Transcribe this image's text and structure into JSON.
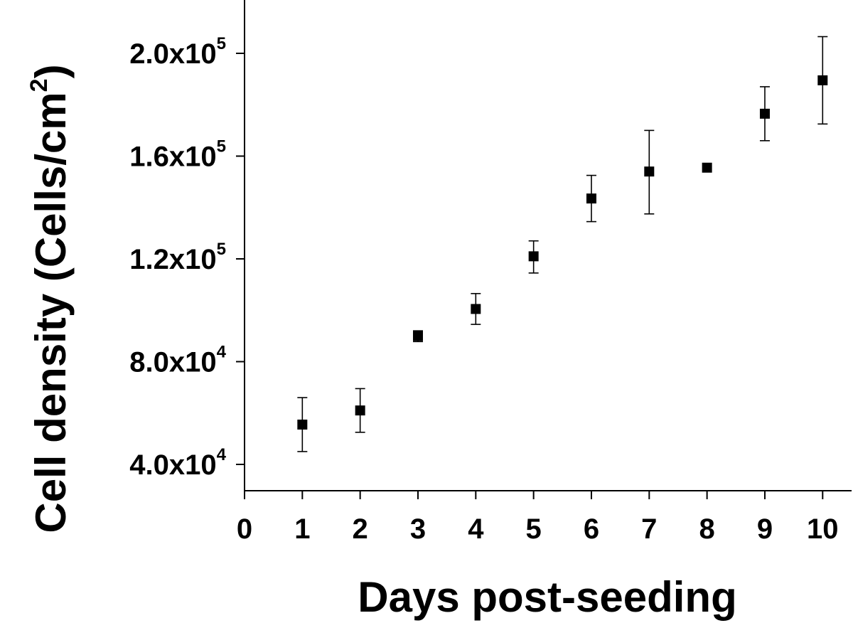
{
  "chart_data": {
    "type": "scatter",
    "xlabel": "Days post-seeding",
    "ylabel": {
      "text": "Cell density (Cells/cm",
      "superscript": "2",
      "suffix": ")"
    },
    "xlim": [
      0,
      10.5
    ],
    "ylim": [
      30000,
      220000
    ],
    "x_ticks": [
      {
        "value": 0,
        "label": "0"
      },
      {
        "value": 1,
        "label": "1"
      },
      {
        "value": 2,
        "label": "2"
      },
      {
        "value": 3,
        "label": "3"
      },
      {
        "value": 4,
        "label": "4"
      },
      {
        "value": 5,
        "label": "5"
      },
      {
        "value": 6,
        "label": "6"
      },
      {
        "value": 7,
        "label": "7"
      },
      {
        "value": 8,
        "label": "8"
      },
      {
        "value": 9,
        "label": "9"
      },
      {
        "value": 10,
        "label": "10"
      }
    ],
    "y_ticks": [
      {
        "value": 40000,
        "mantissa": "4.0x10",
        "exponent": "4"
      },
      {
        "value": 80000,
        "mantissa": "8.0x10",
        "exponent": "4"
      },
      {
        "value": 120000,
        "mantissa": "1.2x10",
        "exponent": "5"
      },
      {
        "value": 160000,
        "mantissa": "1.6x10",
        "exponent": "5"
      },
      {
        "value": 200000,
        "mantissa": "2.0x10",
        "exponent": "5"
      }
    ],
    "grid": false,
    "marker": "square",
    "points": [
      {
        "x": 1,
        "y": 55500,
        "err_low": 45000,
        "err_high": 66000
      },
      {
        "x": 2,
        "y": 61000,
        "err_low": 52500,
        "err_high": 69500
      },
      {
        "x": 3,
        "y": 90000,
        "err_low": 87800,
        "err_high": 92000
      },
      {
        "x": 4,
        "y": 100500,
        "err_low": 94500,
        "err_high": 106500
      },
      {
        "x": 5,
        "y": 121000,
        "err_low": 114500,
        "err_high": 127000
      },
      {
        "x": 6,
        "y": 143500,
        "err_low": 134500,
        "err_high": 152500
      },
      {
        "x": 7,
        "y": 154000,
        "err_low": 137500,
        "err_high": 170000
      },
      {
        "x": 8,
        "y": 155500,
        "err_low": 155500,
        "err_high": 155500
      },
      {
        "x": 9,
        "y": 176500,
        "err_low": 166000,
        "err_high": 187000
      },
      {
        "x": 10,
        "y": 189500,
        "err_low": 172500,
        "err_high": 206500
      }
    ]
  }
}
